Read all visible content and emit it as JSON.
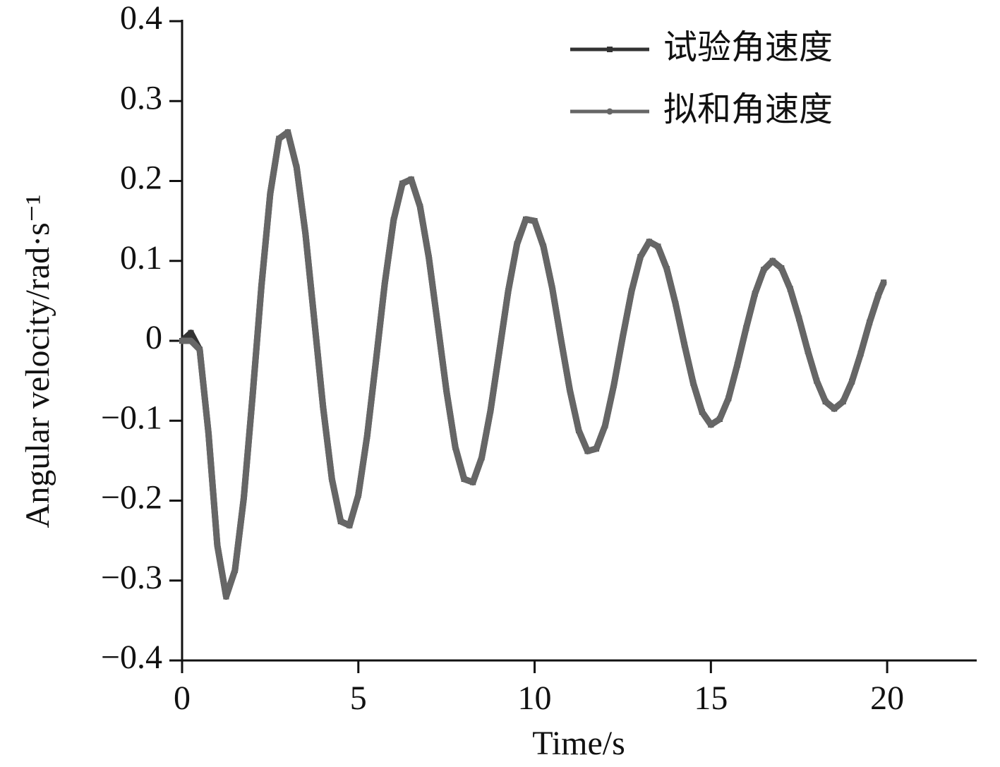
{
  "chart_data": {
    "type": "line",
    "x_label": "Time/s",
    "y_label": "Angular velocity/rad·s⁻¹",
    "x": [
      0,
      0.25,
      0.5,
      0.75,
      1.0,
      1.25,
      1.5,
      1.75,
      2.0,
      2.25,
      2.5,
      2.75,
      3.0,
      3.25,
      3.5,
      3.75,
      4.0,
      4.25,
      4.5,
      4.75,
      5.0,
      5.25,
      5.5,
      5.75,
      6.0,
      6.25,
      6.5,
      6.75,
      7.0,
      7.25,
      7.5,
      7.75,
      8.0,
      8.25,
      8.5,
      8.75,
      9.0,
      9.25,
      9.5,
      9.75,
      10.0,
      10.25,
      10.5,
      10.75,
      11.0,
      11.25,
      11.5,
      11.75,
      12.0,
      12.25,
      12.5,
      12.75,
      13.0,
      13.25,
      13.5,
      13.75,
      14.0,
      14.25,
      14.5,
      14.75,
      15.0,
      15.25,
      15.5,
      15.75,
      16.0,
      16.25,
      16.5,
      16.75,
      17.0,
      17.25,
      17.5,
      17.75,
      18.0,
      18.25,
      18.5,
      18.75,
      19.0,
      19.25,
      19.5,
      19.75,
      19.9
    ],
    "series": [
      {
        "name": "试验角速度",
        "color": "#333333",
        "marker": "square",
        "values": [
          0,
          0.01,
          -0.011,
          -0.116,
          -0.256,
          -0.32,
          -0.287,
          -0.197,
          -0.069,
          0.068,
          0.184,
          0.253,
          0.261,
          0.217,
          0.134,
          0.026,
          -0.083,
          -0.173,
          -0.226,
          -0.231,
          -0.193,
          -0.119,
          -0.025,
          0.072,
          0.151,
          0.197,
          0.202,
          0.168,
          0.104,
          0.021,
          -0.063,
          -0.133,
          -0.173,
          -0.177,
          -0.146,
          -0.087,
          -0.013,
          0.062,
          0.121,
          0.152,
          0.15,
          0.118,
          0.066,
          0.001,
          -0.062,
          -0.112,
          -0.138,
          -0.135,
          -0.106,
          -0.055,
          0.005,
          0.062,
          0.105,
          0.124,
          0.118,
          0.09,
          0.046,
          -0.005,
          -0.053,
          -0.089,
          -0.105,
          -0.098,
          -0.072,
          -0.03,
          0.016,
          0.059,
          0.089,
          0.1,
          0.091,
          0.065,
          0.028,
          -0.013,
          -0.05,
          -0.076,
          -0.085,
          -0.076,
          -0.051,
          -0.016,
          0.023,
          0.057,
          0.073
        ]
      },
      {
        "name": "拟和角速度",
        "color": "#666666",
        "marker": "circle",
        "values": [
          0,
          0,
          -0.011,
          -0.116,
          -0.256,
          -0.32,
          -0.287,
          -0.197,
          -0.069,
          0.068,
          0.184,
          0.253,
          0.261,
          0.217,
          0.134,
          0.026,
          -0.083,
          -0.173,
          -0.226,
          -0.231,
          -0.193,
          -0.119,
          -0.025,
          0.072,
          0.151,
          0.197,
          0.202,
          0.168,
          0.104,
          0.021,
          -0.063,
          -0.133,
          -0.173,
          -0.177,
          -0.146,
          -0.087,
          -0.013,
          0.062,
          0.121,
          0.152,
          0.15,
          0.118,
          0.066,
          0.001,
          -0.062,
          -0.112,
          -0.138,
          -0.135,
          -0.106,
          -0.055,
          0.005,
          0.062,
          0.105,
          0.124,
          0.118,
          0.09,
          0.046,
          -0.005,
          -0.053,
          -0.089,
          -0.105,
          -0.098,
          -0.072,
          -0.03,
          0.016,
          0.059,
          0.089,
          0.1,
          0.091,
          0.065,
          0.028,
          -0.013,
          -0.05,
          -0.076,
          -0.085,
          -0.076,
          -0.051,
          -0.016,
          0.023,
          0.057,
          0.073
        ]
      }
    ],
    "xlim": [
      0,
      22.5
    ],
    "xticks": [
      0,
      5,
      10,
      15,
      20
    ],
    "ylim": [
      -0.4,
      0.4
    ],
    "yticks": [
      {
        "value": -0.4,
        "label": "−0.4"
      },
      {
        "value": -0.3,
        "label": "−0.3"
      },
      {
        "value": -0.2,
        "label": "−0.2"
      },
      {
        "value": -0.1,
        "label": "−0.1"
      },
      0,
      0.1,
      0.2,
      0.3,
      0.4
    ],
    "grid": false,
    "legend": "top-right"
  }
}
